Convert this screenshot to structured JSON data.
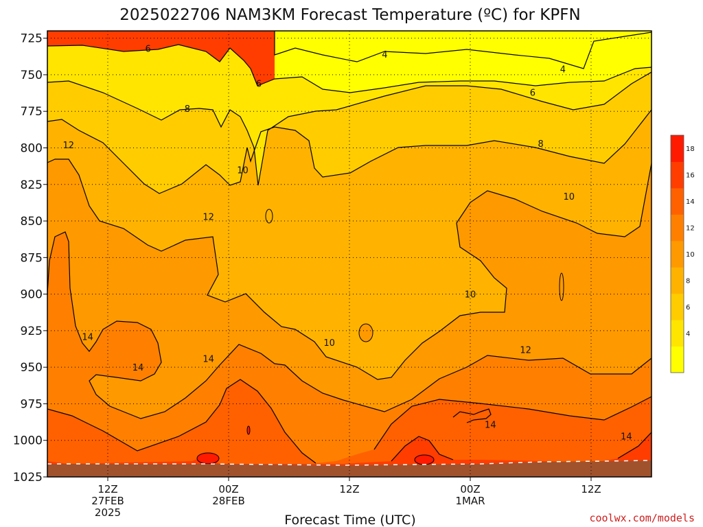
{
  "chart_data": {
    "type": "heatmap",
    "title": "2025022706 NAM3KM Forecast Temperature (ºC) for KPFN",
    "xlabel": "Forecast Time (UTC)",
    "ylabel": "",
    "credit": "coolwx.com/models",
    "y_axis": {
      "ticks": [
        725,
        750,
        775,
        800,
        825,
        850,
        875,
        900,
        925,
        950,
        975,
        1000,
        1025
      ],
      "range": [
        720,
        1025
      ],
      "inverted": true
    },
    "x_axis": {
      "range_hours": [
        0,
        60
      ],
      "ticks": [
        {
          "hour": 6,
          "label": [
            "12Z",
            "27FEB",
            "2025"
          ]
        },
        {
          "hour": 18,
          "label": [
            "00Z",
            "28FEB"
          ]
        },
        {
          "hour": 30,
          "label": [
            "12Z"
          ]
        },
        {
          "hour": 42,
          "label": [
            "00Z",
            "1MAR"
          ]
        },
        {
          "hour": 54,
          "label": [
            "12Z"
          ]
        }
      ]
    },
    "grid": "dotted",
    "contour_interval": 2,
    "colorbar": {
      "placement": "right",
      "levels": [
        {
          "min": 2,
          "max": 4,
          "color": "#ffff00",
          "label": ""
        },
        {
          "min": 4,
          "max": 6,
          "color": "#ffe500",
          "label": "4"
        },
        {
          "min": 6,
          "max": 8,
          "color": "#ffcc00",
          "label": "6"
        },
        {
          "min": 8,
          "max": 10,
          "color": "#ffb300",
          "label": "8"
        },
        {
          "min": 10,
          "max": 12,
          "color": "#ff9900",
          "label": "10"
        },
        {
          "min": 12,
          "max": 14,
          "color": "#ff8000",
          "label": "12"
        },
        {
          "min": 14,
          "max": 16,
          "color": "#ff6100",
          "label": "14"
        },
        {
          "min": 16,
          "max": 18,
          "color": "#ff3d00",
          "label": "16"
        },
        {
          "min": 18,
          "max": 20,
          "color": "#ff1a00",
          "label": "18"
        }
      ]
    },
    "contour_labels": [
      {
        "value": 4,
        "hour": 33.5,
        "pressure": 736
      },
      {
        "value": 4,
        "hour": 51.2,
        "pressure": 746
      },
      {
        "value": 6,
        "hour": 10.0,
        "pressure": 732
      },
      {
        "value": 6,
        "hour": 21.0,
        "pressure": 756
      },
      {
        "value": 6,
        "hour": 48.2,
        "pressure": 762
      },
      {
        "value": 8,
        "hour": 13.9,
        "pressure": 773
      },
      {
        "value": 8,
        "hour": 49.0,
        "pressure": 797
      },
      {
        "value": 10,
        "hour": 19.4,
        "pressure": 815
      },
      {
        "value": 10,
        "hour": 51.8,
        "pressure": 833
      },
      {
        "value": 10,
        "hour": 42.0,
        "pressure": 900
      },
      {
        "value": 10,
        "hour": 28.0,
        "pressure": 933
      },
      {
        "value": 12,
        "hour": 2.1,
        "pressure": 798
      },
      {
        "value": 12,
        "hour": 16.0,
        "pressure": 847
      },
      {
        "value": 12,
        "hour": 47.5,
        "pressure": 938
      },
      {
        "value": 14,
        "hour": 4.0,
        "pressure": 929
      },
      {
        "value": 14,
        "hour": 9.0,
        "pressure": 950
      },
      {
        "value": 14,
        "hour": 16.0,
        "pressure": 944
      },
      {
        "value": 14,
        "hour": 44.0,
        "pressure": 989
      },
      {
        "value": 14,
        "hour": 57.5,
        "pressure": 997
      }
    ]
  }
}
